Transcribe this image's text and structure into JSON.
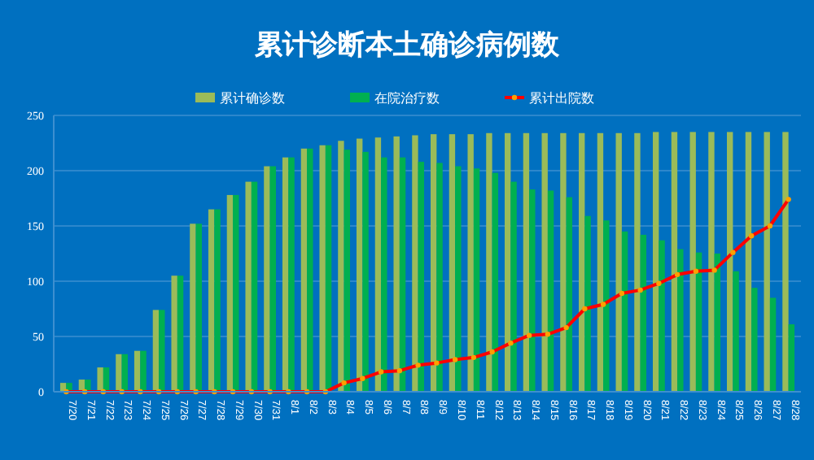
{
  "chart_data": {
    "type": "bar",
    "title": "累计诊断本土确诊病例数",
    "categories": [
      "7/20",
      "7/21",
      "7/22",
      "7/23",
      "7/24",
      "7/25",
      "7/26",
      "7/27",
      "7/28",
      "7/29",
      "7/30",
      "7/31",
      "8/1",
      "8/2",
      "8/3",
      "8/4",
      "8/5",
      "8/6",
      "8/7",
      "8/8",
      "8/9",
      "8/10",
      "8/11",
      "8/12",
      "8/13",
      "8/14",
      "8/15",
      "8/16",
      "8/17",
      "8/18",
      "8/19",
      "8/20",
      "8/21",
      "8/22",
      "8/23",
      "8/24",
      "8/25",
      "8/26",
      "8/27",
      "8/28"
    ],
    "series": [
      {
        "name": "累计确诊数",
        "color": "#9bbb59",
        "values": [
          8,
          11,
          22,
          34,
          37,
          74,
          105,
          152,
          165,
          178,
          190,
          204,
          212,
          220,
          223,
          227,
          229,
          230,
          231,
          232,
          233,
          233,
          233,
          234,
          234,
          234,
          234,
          234,
          234,
          234,
          234,
          234,
          235,
          235,
          235,
          235,
          235,
          235,
          235,
          235
        ]
      },
      {
        "name": "在院治疗数",
        "color": "#00b050",
        "values": [
          8,
          11,
          22,
          34,
          37,
          74,
          105,
          152,
          165,
          178,
          190,
          204,
          212,
          220,
          223,
          219,
          217,
          212,
          212,
          208,
          207,
          204,
          202,
          198,
          190,
          183,
          182,
          176,
          159,
          155,
          145,
          142,
          137,
          129,
          126,
          125,
          109,
          94,
          85,
          61
        ]
      },
      {
        "name": "累计出院数",
        "type": "line",
        "color": "#ff0000",
        "marker": "circle",
        "values": [
          0,
          0,
          0,
          0,
          0,
          0,
          0,
          0,
          0,
          0,
          0,
          0,
          0,
          0,
          0,
          8,
          12,
          18,
          19,
          24,
          26,
          29,
          31,
          36,
          44,
          51,
          52,
          58,
          75,
          79,
          89,
          92,
          98,
          106,
          109,
          110,
          126,
          141,
          150,
          174
        ]
      }
    ],
    "ylim": [
      0,
      250
    ],
    "yticks": [
      0,
      50,
      100,
      150,
      200,
      250
    ],
    "grid": "y",
    "legend": "top"
  }
}
